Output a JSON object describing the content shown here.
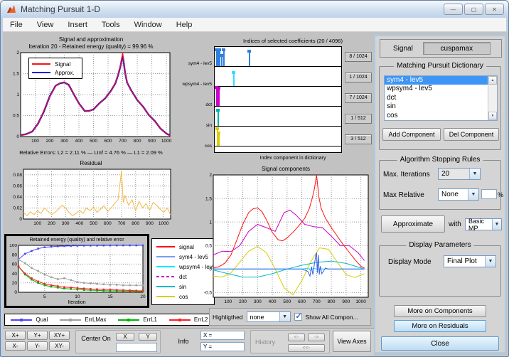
{
  "window": {
    "title": "Matching Pursuit 1-D",
    "controls": [
      "minimize",
      "maximize",
      "close"
    ]
  },
  "menu": {
    "items": [
      "File",
      "View",
      "Insert",
      "Tools",
      "Window",
      "Help"
    ]
  },
  "highlighted": {
    "label": "Highligthed",
    "value": "none",
    "checkbox_label": "Show All Compon...",
    "checked": true
  },
  "toolbar": {
    "zoom_buttons": [
      "X+",
      "Y+",
      "XY+",
      "X-",
      "Y-",
      "XY-"
    ],
    "center_label": "Center On",
    "x_button": "X",
    "y_button": "Y",
    "info_label": "Info",
    "x_field": "X =",
    "y_field": "Y =",
    "history_label": "History",
    "history_buttons": [
      "<-",
      "->",
      "<<-"
    ],
    "view_axes": "View Axes"
  },
  "panel": {
    "signal_label": "Signal",
    "signal_value": "cuspamax",
    "dictionary": {
      "title": "Matching Pursuit Dictionary",
      "items": [
        "sym4 - lev5",
        "wpsym4 - lev5",
        "dct",
        "sin",
        "cos"
      ],
      "selected_index": 0,
      "add_button": "Add Component",
      "del_button": "Del Component"
    },
    "stopping": {
      "title": "Algorithm Stopping Rules",
      "max_iter_label": "Max. Iterations",
      "max_iter_value": "20",
      "max_rel_label": "Max Relative",
      "max_rel_value": "None",
      "percent_value": "",
      "percent_sign": "%"
    },
    "approximate": {
      "button": "Approximate",
      "with_label": "with",
      "method_value": "Basic MP"
    },
    "display": {
      "title": "Display Parameters",
      "mode_label": "Display Mode",
      "mode_value": "Final Plot"
    },
    "buttons": {
      "more_components": "More on Components",
      "more_residuals": "More on Residuals",
      "close": "Close"
    }
  },
  "chart_data": [
    {
      "type": "line",
      "title": "Signal and approximation",
      "subtitle": "Iteration 20 - Retained energy (quality) = 99.96 %",
      "footer": "Relative Errors:  L2 = 2.11 %  —  LInf = 4.76 %  —  L1 = 2.09 %",
      "xlim": [
        0,
        1024
      ],
      "ylim": [
        0,
        2
      ],
      "xticks": [
        100,
        200,
        300,
        400,
        500,
        600,
        700,
        800,
        900,
        1000
      ],
      "yticks": [
        0,
        0.5,
        1,
        1.5,
        2
      ],
      "legend": [
        {
          "label": "Signal",
          "color": "#ff1010"
        },
        {
          "label": "Approx.",
          "color": "#1818e8"
        }
      ],
      "series": [
        {
          "name": "Approx.",
          "color": "#1818e8",
          "width": 2.4,
          "x": [
            0,
            40,
            80,
            120,
            160,
            200,
            240,
            270,
            300,
            330,
            360,
            400,
            440,
            470,
            500,
            540,
            580,
            620,
            650,
            670,
            685,
            695,
            700,
            705,
            715,
            730,
            760,
            800,
            840,
            880,
            920,
            960,
            1000,
            1024
          ],
          "y": [
            0.03,
            0.06,
            0.12,
            0.31,
            0.6,
            0.96,
            1.21,
            1.27,
            1.29,
            1.23,
            1.04,
            0.79,
            0.61,
            0.61,
            0.65,
            0.79,
            0.91,
            1.09,
            1.27,
            1.48,
            1.68,
            1.85,
            1.92,
            1.83,
            1.56,
            1.29,
            1.09,
            0.87,
            0.71,
            0.51,
            0.37,
            0.19,
            0.07,
            0.03
          ]
        },
        {
          "name": "Signal",
          "color": "#ff1010",
          "width": 1.2,
          "x": [
            0,
            40,
            80,
            120,
            160,
            200,
            240,
            270,
            300,
            330,
            360,
            400,
            440,
            470,
            500,
            540,
            580,
            620,
            650,
            670,
            685,
            695,
            700,
            705,
            715,
            730,
            760,
            800,
            840,
            880,
            920,
            960,
            1000,
            1024
          ],
          "y": [
            0.02,
            0.05,
            0.13,
            0.3,
            0.62,
            0.95,
            1.2,
            1.28,
            1.3,
            1.22,
            1.05,
            0.78,
            0.62,
            0.6,
            0.66,
            0.78,
            0.92,
            1.08,
            1.28,
            1.5,
            1.7,
            1.9,
            2.0,
            1.85,
            1.55,
            1.3,
            1.08,
            0.88,
            0.7,
            0.52,
            0.36,
            0.2,
            0.06,
            0.02
          ]
        }
      ]
    },
    {
      "type": "line",
      "title": "Residual",
      "xlim": [
        0,
        1050
      ],
      "ylim": [
        0,
        0.09
      ],
      "xticks": [
        100,
        200,
        300,
        400,
        500,
        600,
        700,
        800,
        900,
        1000
      ],
      "yticks": [
        0,
        0.02,
        0.04,
        0.06,
        0.08
      ],
      "series": [
        {
          "name": "residual",
          "color": "#f5b942",
          "width": 1,
          "x": [
            0,
            25,
            50,
            75,
            100,
            125,
            150,
            175,
            200,
            225,
            250,
            275,
            300,
            325,
            350,
            375,
            400,
            425,
            450,
            475,
            500,
            525,
            550,
            575,
            600,
            625,
            650,
            675,
            700,
            712,
            725,
            750,
            775,
            800,
            825,
            850,
            875,
            900,
            925,
            950,
            975,
            1000,
            1025,
            1050
          ],
          "y": [
            0.012,
            0.006,
            0.013,
            0.008,
            0.015,
            0.01,
            0.02,
            0.014,
            0.008,
            0.012,
            0.018,
            0.025,
            0.02,
            0.012,
            0.006,
            0.01,
            0.016,
            0.01,
            0.02,
            0.015,
            0.022,
            0.012,
            0.018,
            0.024,
            0.014,
            0.02,
            0.028,
            0.035,
            0.088,
            0.03,
            0.042,
            0.025,
            0.035,
            0.015,
            0.032,
            0.02,
            0.028,
            0.016,
            0.03,
            0.025,
            0.018,
            0.012,
            0.02,
            0.008
          ]
        }
      ]
    },
    {
      "type": "line",
      "title": "Retained energy (quality) and relative error",
      "xlabel": "Iteration",
      "xlim": [
        1,
        20
      ],
      "ylim": [
        0,
        100
      ],
      "xticks": [
        5,
        10,
        15,
        20
      ],
      "yticks": [
        0,
        20,
        40,
        60,
        80,
        100
      ],
      "legend": [
        {
          "label": "Qual",
          "color": "#4848ff"
        },
        {
          "label": "ErrLMax",
          "color": "#a0a0a0"
        },
        {
          "label": "ErrL1",
          "color": "#00b400"
        },
        {
          "label": "ErrL2",
          "color": "#ff2020"
        }
      ],
      "series": [
        {
          "name": "Qual",
          "color": "#4848ff",
          "width": 1,
          "marker": true,
          "x": [
            1,
            2,
            3,
            4,
            5,
            6,
            7,
            8,
            9,
            10,
            11,
            12,
            13,
            14,
            15,
            16,
            17,
            18,
            19,
            20
          ],
          "y": [
            70,
            82,
            88,
            93,
            96,
            97,
            98,
            98.5,
            99,
            99.2,
            99.4,
            99.5,
            99.6,
            99.7,
            99.8,
            99.8,
            99.9,
            99.9,
            99.9,
            99.96
          ]
        },
        {
          "name": "ErrLMax",
          "color": "#a0a0a0",
          "width": 1,
          "marker": true,
          "x": [
            1,
            2,
            3,
            4,
            5,
            6,
            7,
            8,
            9,
            10,
            11,
            12,
            13,
            14,
            15,
            16,
            17,
            18,
            19,
            20
          ],
          "y": [
            70,
            62,
            52,
            45,
            38,
            32,
            28,
            30,
            26,
            22,
            20,
            19,
            18,
            17,
            16,
            16,
            15,
            15,
            15,
            15
          ]
        },
        {
          "name": "ErrL1",
          "color": "#00b400",
          "width": 1,
          "marker": true,
          "x": [
            1,
            2,
            3,
            4,
            5,
            6,
            7,
            8,
            9,
            10,
            11,
            12,
            13,
            14,
            15,
            16,
            17,
            18,
            19,
            20
          ],
          "y": [
            55,
            38,
            27,
            20,
            15,
            12,
            10,
            8,
            7,
            6,
            5,
            4.5,
            4,
            3.5,
            3,
            3,
            2.5,
            2.5,
            2,
            2
          ]
        },
        {
          "name": "ErrL2",
          "color": "#ff2020",
          "width": 1,
          "marker": true,
          "x": [
            1,
            2,
            3,
            4,
            5,
            6,
            7,
            8,
            9,
            10,
            11,
            12,
            13,
            14,
            15,
            16,
            17,
            18,
            19,
            20
          ],
          "y": [
            55,
            40,
            30,
            23,
            18,
            15,
            13,
            11,
            10,
            9,
            8,
            7,
            6.5,
            6,
            5.5,
            5,
            4.5,
            4,
            3.5,
            3
          ]
        }
      ]
    },
    {
      "type": "line",
      "title": "Signal components",
      "xlim": [
        0,
        1050
      ],
      "ylim": [
        -0.6,
        2
      ],
      "xticks": [
        100,
        200,
        300,
        400,
        500,
        600,
        700,
        800,
        900,
        1000
      ],
      "yticks": [
        -0.5,
        0,
        0.5,
        1,
        1.5,
        2
      ],
      "legend": [
        {
          "label": "signal",
          "color": "#ff1010",
          "dash": false
        },
        {
          "label": "sym4 - lev5",
          "color": "#7a9cf0",
          "dash": false
        },
        {
          "label": "wpsym4 - lev5",
          "color": "#00e8ff",
          "dash": false
        },
        {
          "label": "dct",
          "color": "#c800c8",
          "dash": true
        },
        {
          "label": "sin",
          "color": "#00b8c8",
          "dash": false
        },
        {
          "label": "cos",
          "color": "#d6cf00",
          "dash": false
        }
      ],
      "series": [
        {
          "name": "cos",
          "color": "#d6cf00",
          "width": 1,
          "x": [
            0,
            60,
            120,
            180,
            240,
            300,
            360,
            420,
            480,
            540,
            600,
            660,
            720,
            780,
            840,
            900,
            960,
            1024
          ],
          "y": [
            -0.15,
            -0.17,
            -0.08,
            0.15,
            0.38,
            0.48,
            0.35,
            0.0,
            -0.4,
            -0.55,
            -0.25,
            0.15,
            0.45,
            0.42,
            0.15,
            -0.12,
            -0.18,
            -0.1
          ]
        },
        {
          "name": "sin",
          "color": "#00b8c8",
          "width": 1,
          "x": [
            0,
            100,
            200,
            300,
            400,
            500,
            600,
            700,
            800,
            900,
            1024
          ],
          "y": [
            -0.02,
            -0.1,
            -0.17,
            -0.17,
            -0.1,
            0.0,
            0.08,
            0.14,
            0.17,
            0.12,
            0.0
          ]
        },
        {
          "name": "wpsym4 - lev5",
          "color": "#00e8ff",
          "width": 1,
          "x": [
            0,
            200,
            400,
            600,
            640,
            660,
            680,
            700,
            1024
          ],
          "y": [
            0,
            0,
            0,
            0,
            0.02,
            -0.03,
            0.02,
            0,
            0
          ]
        },
        {
          "name": "dct",
          "color": "#c800c8",
          "width": 1,
          "x": [
            0,
            60,
            120,
            180,
            240,
            300,
            360,
            420,
            480,
            520,
            560,
            620,
            680,
            740,
            800,
            860,
            920,
            980,
            1024
          ],
          "y": [
            0.3,
            0.38,
            0.37,
            0.5,
            0.8,
            0.95,
            0.88,
            0.8,
            1.2,
            1.25,
            1.15,
            0.95,
            0.9,
            0.88,
            0.7,
            0.5,
            0.5,
            0.35,
            0.18
          ]
        },
        {
          "name": "signal",
          "color": "#ff1010",
          "width": 1,
          "x": [
            0,
            40,
            80,
            120,
            160,
            200,
            240,
            270,
            300,
            330,
            360,
            400,
            440,
            470,
            500,
            540,
            580,
            620,
            650,
            670,
            685,
            695,
            700,
            705,
            715,
            730,
            760,
            800,
            840,
            880,
            920,
            960,
            1000,
            1024
          ],
          "y": [
            0.02,
            0.05,
            0.13,
            0.3,
            0.62,
            0.95,
            1.2,
            1.28,
            1.3,
            1.22,
            1.05,
            0.78,
            0.62,
            0.6,
            0.66,
            0.78,
            0.92,
            1.08,
            1.28,
            1.5,
            1.7,
            1.9,
            2.0,
            1.85,
            1.55,
            1.3,
            1.08,
            0.88,
            0.7,
            0.52,
            0.36,
            0.2,
            0.06,
            0.02
          ]
        },
        {
          "name": "sym4 - lev5",
          "color": "#3a5fe8",
          "width": 1,
          "x": [
            0,
            600,
            640,
            655,
            665,
            675,
            685,
            695,
            700,
            705,
            712,
            718,
            725,
            735,
            745,
            760,
            780,
            1024
          ],
          "y": [
            0,
            0,
            -0.05,
            -0.15,
            0.05,
            -0.12,
            0.1,
            0.3,
            0.35,
            -0.08,
            0.3,
            -0.12,
            0.06,
            -0.1,
            -0.05,
            0.02,
            0,
            0
          ]
        }
      ]
    },
    {
      "type": "stem",
      "title": "Indices of selected coefficients  (20 / 4096)",
      "xlabel": "Index component in dictionary",
      "rows": [
        {
          "label": "sym4 - lev5",
          "count": "8 / 1024",
          "color": "#2f7fe0",
          "stems": [
            0.012,
            0.022,
            0.032,
            0.05,
            0.065,
            0.27
          ],
          "heights": [
            0.78,
            0.68,
            0.78,
            0.5,
            0.78,
            0.72
          ]
        },
        {
          "label": "wpsym4 - lev5",
          "count": "1 / 1024",
          "color": "#33ddff",
          "stems": [
            0.148
          ],
          "heights": [
            0.62
          ]
        },
        {
          "label": "dct",
          "count": "7 / 1024",
          "color": "#cc00cc",
          "stems": [
            0.012,
            0.02,
            0.028
          ],
          "heights": [
            0.88,
            0.8,
            0.85
          ]
        },
        {
          "label": "sin",
          "count": "1 / 512",
          "color": "#00b0b0",
          "stems": [
            0.022
          ],
          "heights": [
            0.75
          ]
        },
        {
          "label": "cos",
          "count": "3 / 512",
          "color": "#ddcc00",
          "stems": [
            0.018,
            0.03
          ],
          "heights": [
            0.82,
            0.6
          ]
        }
      ]
    }
  ]
}
